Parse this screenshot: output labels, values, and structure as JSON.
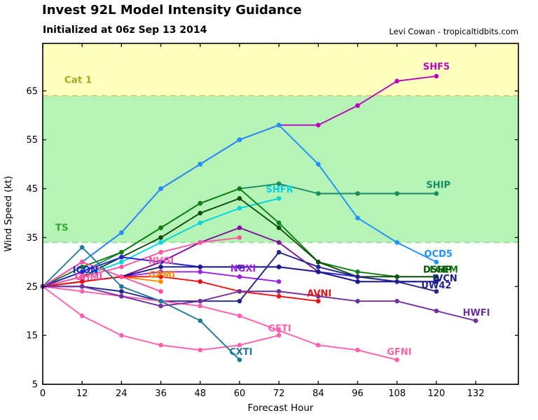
{
  "header": {
    "title": "Invest 92L Model Intensity Guidance",
    "subtitle": "Initialized at 06z Sep 13 2014",
    "credit": "Levi Cowan - tropicaltidbits.com"
  },
  "chart_data": {
    "type": "line",
    "xlabel": "Forecast Hour",
    "ylabel": "Wind Speed (kt)",
    "xlim": [
      0,
      145
    ],
    "ylim": [
      5,
      74.7
    ],
    "x_ticks": [
      0,
      12,
      24,
      36,
      48,
      60,
      72,
      84,
      96,
      108,
      120,
      132
    ],
    "y_ticks": [
      5,
      15,
      25,
      35,
      45,
      55,
      65
    ],
    "grid": false,
    "bands": [
      {
        "name": "hurricane-band",
        "from": 64,
        "to": 74.7,
        "color": "#ffffbe",
        "label": "Cat 1",
        "label_color": "#a8a820",
        "label_pos": [
          6.6,
          66.6
        ]
      },
      {
        "name": "tropical-storm-band",
        "from": 34,
        "to": 64,
        "color": "#b6f3b6",
        "label": "TS",
        "label_color": "#33aa33",
        "label_pos": [
          3.8,
          36.4
        ]
      }
    ],
    "thresholds": [
      {
        "name": "hurricane-threshold",
        "value": 64,
        "color": "#c9c96a"
      },
      {
        "name": "tropical-storm-threshold",
        "value": 34,
        "color": "#93dd93"
      }
    ],
    "series": [
      {
        "name": "SHF5",
        "color": "#bf00bf",
        "hours": [
          0,
          12,
          24,
          36,
          48,
          60,
          72,
          84,
          96,
          108,
          120
        ],
        "values": [
          25,
          30,
          36,
          45,
          50,
          55,
          58,
          58,
          62,
          67,
          68
        ],
        "label": {
          "text": "SHF5",
          "pos": [
            120.0,
            69.9
          ]
        }
      },
      {
        "name": "OCD5",
        "color": "#1e90ff",
        "hours": [
          0,
          12,
          24,
          36,
          48,
          60,
          72,
          84,
          96,
          108,
          120
        ],
        "values": [
          25,
          30,
          36,
          45,
          50,
          55,
          58,
          50,
          39,
          34,
          30
        ],
        "label": {
          "text": "OCD5",
          "pos": [
            120.6,
            31.6
          ]
        }
      },
      {
        "name": "SHIP",
        "color": "#1a8a60",
        "hours": [
          0,
          12,
          24,
          36,
          48,
          60,
          72,
          84,
          96,
          108,
          120
        ],
        "values": [
          25,
          28,
          32,
          37,
          42,
          45,
          46,
          44,
          44,
          44,
          44
        ],
        "label": {
          "text": "SHIP",
          "pos": [
            120.6,
            45.7
          ]
        }
      },
      {
        "name": "SHFR",
        "color": "#00d5e0",
        "hours": [
          0,
          12,
          24,
          36,
          48,
          60,
          72
        ],
        "values": [
          25,
          27,
          30,
          34,
          38,
          41,
          43
        ],
        "label": {
          "text": "SHFR",
          "pos": [
            72.2,
            44.8
          ]
        }
      },
      {
        "name": "LGEM",
        "color": "#0f7d0f",
        "hours": [
          0,
          12,
          24,
          36,
          48,
          60,
          72,
          84,
          96,
          108,
          120
        ],
        "values": [
          25,
          29,
          32,
          37,
          42,
          45,
          38,
          30,
          28,
          27,
          27
        ],
        "label": {
          "text": "LGEM",
          "pos": [
            122.3,
            28.4
          ]
        }
      },
      {
        "name": "DSHP",
        "color": "#0a4f0a",
        "hours": [
          0,
          12,
          24,
          36,
          48,
          60,
          72,
          84,
          96,
          108,
          120
        ],
        "values": [
          25,
          27,
          31,
          35,
          40,
          43,
          37,
          30,
          27,
          27,
          27
        ],
        "label": {
          "text": "DSHP",
          "pos": [
            120.3,
            28.4
          ]
        }
      },
      {
        "name": "unlabeled-violet",
        "color": "#7d0f9b",
        "hours": [
          0,
          12,
          24,
          36,
          48,
          60,
          72,
          84,
          96,
          108,
          120
        ],
        "values": [
          25,
          26,
          27,
          30,
          34,
          37,
          34,
          28,
          26,
          26,
          26
        ],
        "label": null
      },
      {
        "name": "NGXI",
        "color": "#9d1fe8",
        "hours": [
          0,
          12,
          24,
          36,
          48,
          60,
          72
        ],
        "values": [
          25,
          26,
          27,
          28,
          28,
          27,
          26
        ],
        "label": {
          "text": "NGXI",
          "pos": [
            61.1,
            28.6
          ]
        }
      },
      {
        "name": "NVGI",
        "color": "#ff56a5",
        "hours": [
          0,
          12,
          24,
          36,
          48,
          60
        ],
        "values": [
          25,
          27,
          29,
          32,
          34,
          35
        ],
        "label": {
          "text": "NVGI",
          "pos": [
            36.1,
            30.2
          ]
        }
      },
      {
        "name": "GPMI",
        "color": "#ff8c00",
        "hours": [
          0,
          12,
          24,
          36
        ],
        "values": [
          25,
          26,
          27,
          26
        ],
        "label": {
          "text": "GPMI",
          "pos": [
            36.3,
            27.3
          ]
        }
      },
      {
        "name": "ICON",
        "color": "#2222dd",
        "hours": [
          0,
          12,
          24,
          36,
          48,
          60,
          72,
          84,
          96,
          108,
          120
        ],
        "values": [
          25,
          28,
          31,
          30,
          29,
          29,
          29,
          28,
          27,
          26,
          26
        ],
        "label": {
          "text": "ICON",
          "pos": [
            13.0,
            28.3
          ]
        }
      },
      {
        "name": "IVCN",
        "color": "#1a1a8c",
        "hours": [
          0,
          12,
          24,
          36,
          48,
          60,
          72,
          84,
          96,
          108,
          120
        ],
        "values": [
          25,
          26,
          27,
          29,
          29,
          29,
          29,
          28,
          26,
          26,
          26
        ],
        "label": {
          "text": "IVCN",
          "pos": [
            122.6,
            26.6
          ]
        }
      },
      {
        "name": "UW42",
        "color": "#24248f",
        "hours": [
          0,
          12,
          24,
          36,
          48,
          60,
          72,
          84,
          96,
          108,
          120
        ],
        "values": [
          25,
          25,
          24,
          22,
          22,
          22,
          32,
          29,
          27,
          26,
          24
        ],
        "label": {
          "text": "UW42",
          "pos": [
            120.0,
            25.2
          ]
        }
      },
      {
        "name": "AVNI",
        "color": "#ee1111",
        "hours": [
          0,
          12,
          24,
          36,
          48,
          60,
          72,
          84
        ],
        "values": [
          25,
          26,
          27,
          27,
          26,
          24,
          23,
          22
        ],
        "label": {
          "text": "AVNI",
          "pos": [
            84.3,
            23.5
          ]
        }
      },
      {
        "name": "GHMI",
        "color": "#ff4fa0",
        "hours": [
          0,
          12,
          24,
          36
        ],
        "values": [
          25,
          30,
          27,
          24
        ],
        "label": {
          "text": "GHMI",
          "pos": [
            14.0,
            26.9
          ]
        }
      },
      {
        "name": "GFTI",
        "color": "#ff5fae",
        "hours": [
          0,
          12,
          24,
          36,
          48,
          60,
          72
        ],
        "values": [
          25,
          19,
          15,
          13,
          12,
          13,
          15
        ],
        "label": {
          "text": "GFTI",
          "pos": [
            72.2,
            16.4
          ]
        }
      },
      {
        "name": "GFNI",
        "color": "#ff5fae",
        "hours": [
          0,
          12,
          24,
          36,
          48,
          60,
          72,
          84,
          96,
          108
        ],
        "values": [
          25,
          24,
          23,
          22,
          21,
          19,
          16,
          13,
          12,
          10
        ],
        "label": {
          "text": "GFNI",
          "pos": [
            108.7,
            11.6
          ]
        }
      },
      {
        "name": "CXTI",
        "color": "#20799b",
        "hours": [
          0,
          12,
          24,
          36,
          48,
          60
        ],
        "values": [
          25,
          33,
          25,
          22,
          18,
          10
        ],
        "label": {
          "text": "CXTI",
          "pos": [
            60.4,
            11.6
          ]
        }
      },
      {
        "name": "HWFI",
        "color": "#722f9e",
        "hours": [
          0,
          12,
          24,
          36,
          48,
          60,
          72,
          84,
          96,
          108,
          120,
          132
        ],
        "values": [
          25,
          25,
          23,
          21,
          22,
          24,
          24,
          23,
          22,
          22,
          20,
          18
        ],
        "label": {
          "text": "HWFI",
          "pos": [
            132.2,
            19.6
          ]
        }
      }
    ]
  }
}
